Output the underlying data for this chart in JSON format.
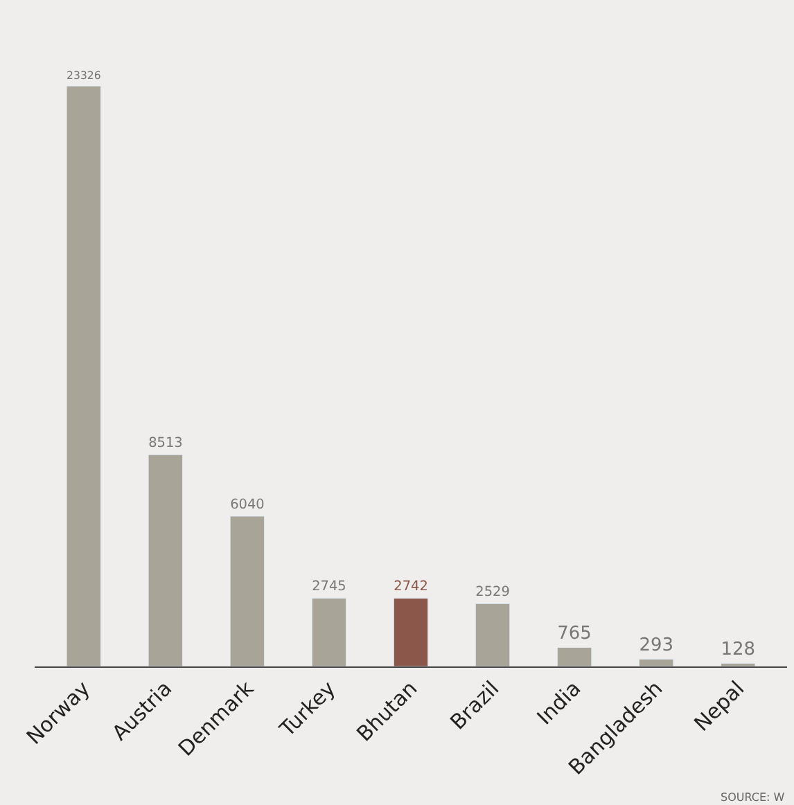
{
  "chart_data": {
    "type": "bar",
    "categories": [
      "Norway",
      "Austria",
      "Denmark",
      "Turkey",
      "Bhutan",
      "Brazil",
      "India",
      "Bangladesh",
      "Nepal"
    ],
    "values": [
      23326,
      8513,
      6040,
      2745,
      2742,
      2529,
      765,
      293,
      128
    ],
    "colors": [
      "#a8a498",
      "#a8a498",
      "#a8a498",
      "#a8a498",
      "#8b574b",
      "#a8a498",
      "#a8a498",
      "#a8a498",
      "#a8a498"
    ],
    "data_labels": true,
    "annotations": [
      "SOURCE: W"
    ]
  }
}
